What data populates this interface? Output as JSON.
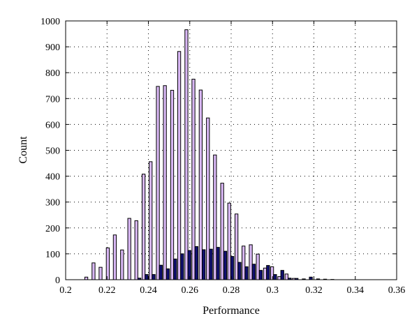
{
  "chart_data": {
    "type": "bar",
    "xlabel": "Performance",
    "ylabel": "Count",
    "xlim": [
      0.2,
      0.36
    ],
    "ylim": [
      0,
      1000
    ],
    "xticks": [
      0.2,
      0.22,
      0.24,
      0.26,
      0.28,
      0.3,
      0.32,
      0.34,
      0.36
    ],
    "xtick_labels": [
      "0.2",
      "0.22",
      "0.24",
      "0.26",
      "0.28",
      "0.3",
      "0.32",
      "0.34",
      "0.36"
    ],
    "yticks": [
      0,
      100,
      200,
      300,
      400,
      500,
      600,
      700,
      800,
      900,
      1000
    ],
    "ytick_labels": [
      "0",
      "100",
      "200",
      "300",
      "400",
      "500",
      "600",
      "700",
      "800",
      "900",
      "1000"
    ],
    "grid": true,
    "categories": [
      0.2107,
      0.2142,
      0.2176,
      0.2211,
      0.2245,
      0.228,
      0.2315,
      0.2349,
      0.2384,
      0.2418,
      0.2453,
      0.2487,
      0.2522,
      0.2556,
      0.2591,
      0.2625,
      0.266,
      0.2695,
      0.2729,
      0.2764,
      0.2798,
      0.2833,
      0.2867,
      0.2902,
      0.2936,
      0.2971,
      0.3005,
      0.304,
      0.3075,
      0.3109,
      0.3144,
      0.3178,
      0.3213,
      0.3247,
      0.3282,
      0.3316,
      0.3351,
      0.3385,
      0.342,
      0.3455
    ],
    "series": [
      {
        "color": "#d9b8f5",
        "values": [
          10,
          65,
          48,
          123,
          173,
          115,
          237,
          228,
          408,
          456,
          747,
          750,
          732,
          882,
          966,
          775,
          733,
          625,
          482,
          373,
          296,
          254,
          130,
          135,
          99,
          45,
          50,
          12,
          22,
          5,
          0,
          0,
          0,
          0,
          0,
          0,
          0,
          0,
          0,
          0
        ]
      },
      {
        "color": "#101070",
        "values": [
          0,
          0,
          0,
          0,
          0,
          0,
          0,
          6,
          20,
          20,
          56,
          42,
          80,
          100,
          113,
          128,
          116,
          118,
          125,
          110,
          90,
          67,
          50,
          60,
          36,
          55,
          20,
          36,
          6,
          5,
          3,
          10,
          3,
          2,
          1,
          0,
          0,
          0,
          0,
          0
        ]
      }
    ]
  }
}
